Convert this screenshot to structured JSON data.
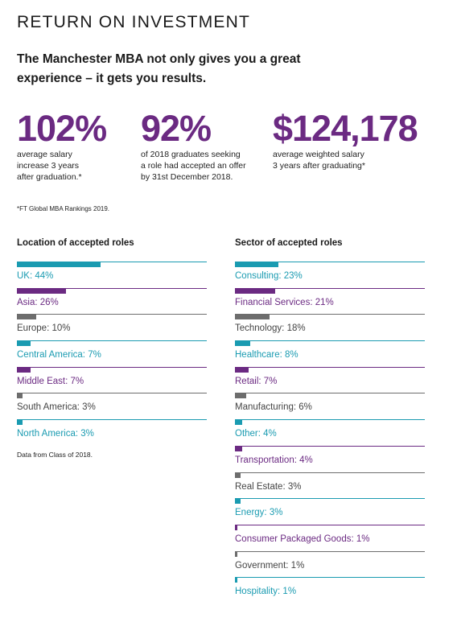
{
  "title": "RETURN ON INVESTMENT",
  "intro": "The Manchester MBA not only gives you a great experience – it gets you results.",
  "colors": {
    "teal": "#1a9bb1",
    "purple": "#6b2a82",
    "grey": "#6d6d6d"
  },
  "stats": [
    {
      "value": "102%",
      "lines": [
        "average salary",
        "increase 3 years",
        "after graduation.*"
      ]
    },
    {
      "value": "92%",
      "lines": [
        "of 2018 graduates seeking",
        "a role had accepted an offer",
        "by 31st December 2018."
      ]
    },
    {
      "value": "$124,178",
      "lines": [
        "average weighted salary",
        "3 years after graduating*"
      ]
    }
  ],
  "footnote": "*FT Global MBA Rankings 2019.",
  "location": {
    "title": "Location of accepted roles",
    "items": [
      {
        "label": "UK: 44%",
        "value": 44,
        "color": "teal"
      },
      {
        "label": "Asia: 26%",
        "value": 26,
        "color": "purple"
      },
      {
        "label": "Europe: 10%",
        "value": 10,
        "color": "grey"
      },
      {
        "label": "Central America: 7%",
        "value": 7,
        "color": "teal"
      },
      {
        "label": "Middle East: 7%",
        "value": 7,
        "color": "purple"
      },
      {
        "label": "South America: 3%",
        "value": 3,
        "color": "grey"
      },
      {
        "label": "North America: 3%",
        "value": 3,
        "color": "teal"
      }
    ],
    "note": "Data from Class of 2018."
  },
  "sector": {
    "title": "Sector of accepted roles",
    "items": [
      {
        "label": "Consulting: 23%",
        "value": 23,
        "color": "teal"
      },
      {
        "label": "Financial Services: 21%",
        "value": 21,
        "color": "purple"
      },
      {
        "label": "Technology: 18%",
        "value": 18,
        "color": "grey"
      },
      {
        "label": "Healthcare: 8%",
        "value": 8,
        "color": "teal"
      },
      {
        "label": "Retail: 7%",
        "value": 7,
        "color": "purple"
      },
      {
        "label": "Manufacturing: 6%",
        "value": 6,
        "color": "grey"
      },
      {
        "label": "Other: 4%",
        "value": 4,
        "color": "teal"
      },
      {
        "label": "Transportation: 4%",
        "value": 4,
        "color": "purple"
      },
      {
        "label": "Real Estate: 3%",
        "value": 3,
        "color": "grey"
      },
      {
        "label": "Energy: 3%",
        "value": 3,
        "color": "teal"
      },
      {
        "label": "Consumer Packaged Goods: 1%",
        "value": 1,
        "color": "purple"
      },
      {
        "label": "Government: 1%",
        "value": 1,
        "color": "grey"
      },
      {
        "label": "Hospitality: 1%",
        "value": 1,
        "color": "teal"
      }
    ]
  }
}
